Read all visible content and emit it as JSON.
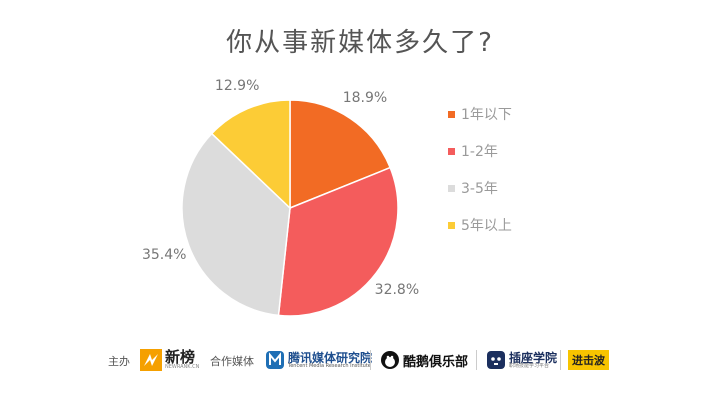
{
  "title": "你从事新媒体多久了?",
  "chart_data": {
    "type": "pie",
    "categories": [
      "1年以下",
      "1-2年",
      "3-5年",
      "5年以上"
    ],
    "values": [
      18.9,
      32.8,
      35.4,
      12.9
    ],
    "labels": [
      "18.9%",
      "32.8%",
      "35.4%",
      "12.9%"
    ],
    "colors": [
      "#f26b24",
      "#f45c5c",
      "#dcdcdc",
      "#fccc36"
    ],
    "legend_position": "right",
    "start_angle": "12 o'clock",
    "direction": "clockwise"
  },
  "footer": {
    "host_label": "主办",
    "host_logo": "新榜",
    "host_logo_sub": "NEWRANK.CN",
    "partner_label": "合作媒体",
    "partners": [
      {
        "name": "腾讯媒体研究院",
        "sub": "Tencent Media Research Institute",
        "icon": "tencent-media-logo-icon"
      },
      {
        "name": "酷鹅俱乐部",
        "icon": "penguin-logo-icon"
      },
      {
        "name": "插座学院",
        "sub": "职场技能学习平台",
        "icon": "socket-logo-icon"
      },
      {
        "name": "进击波",
        "icon": "badge-logo-icon"
      }
    ]
  }
}
